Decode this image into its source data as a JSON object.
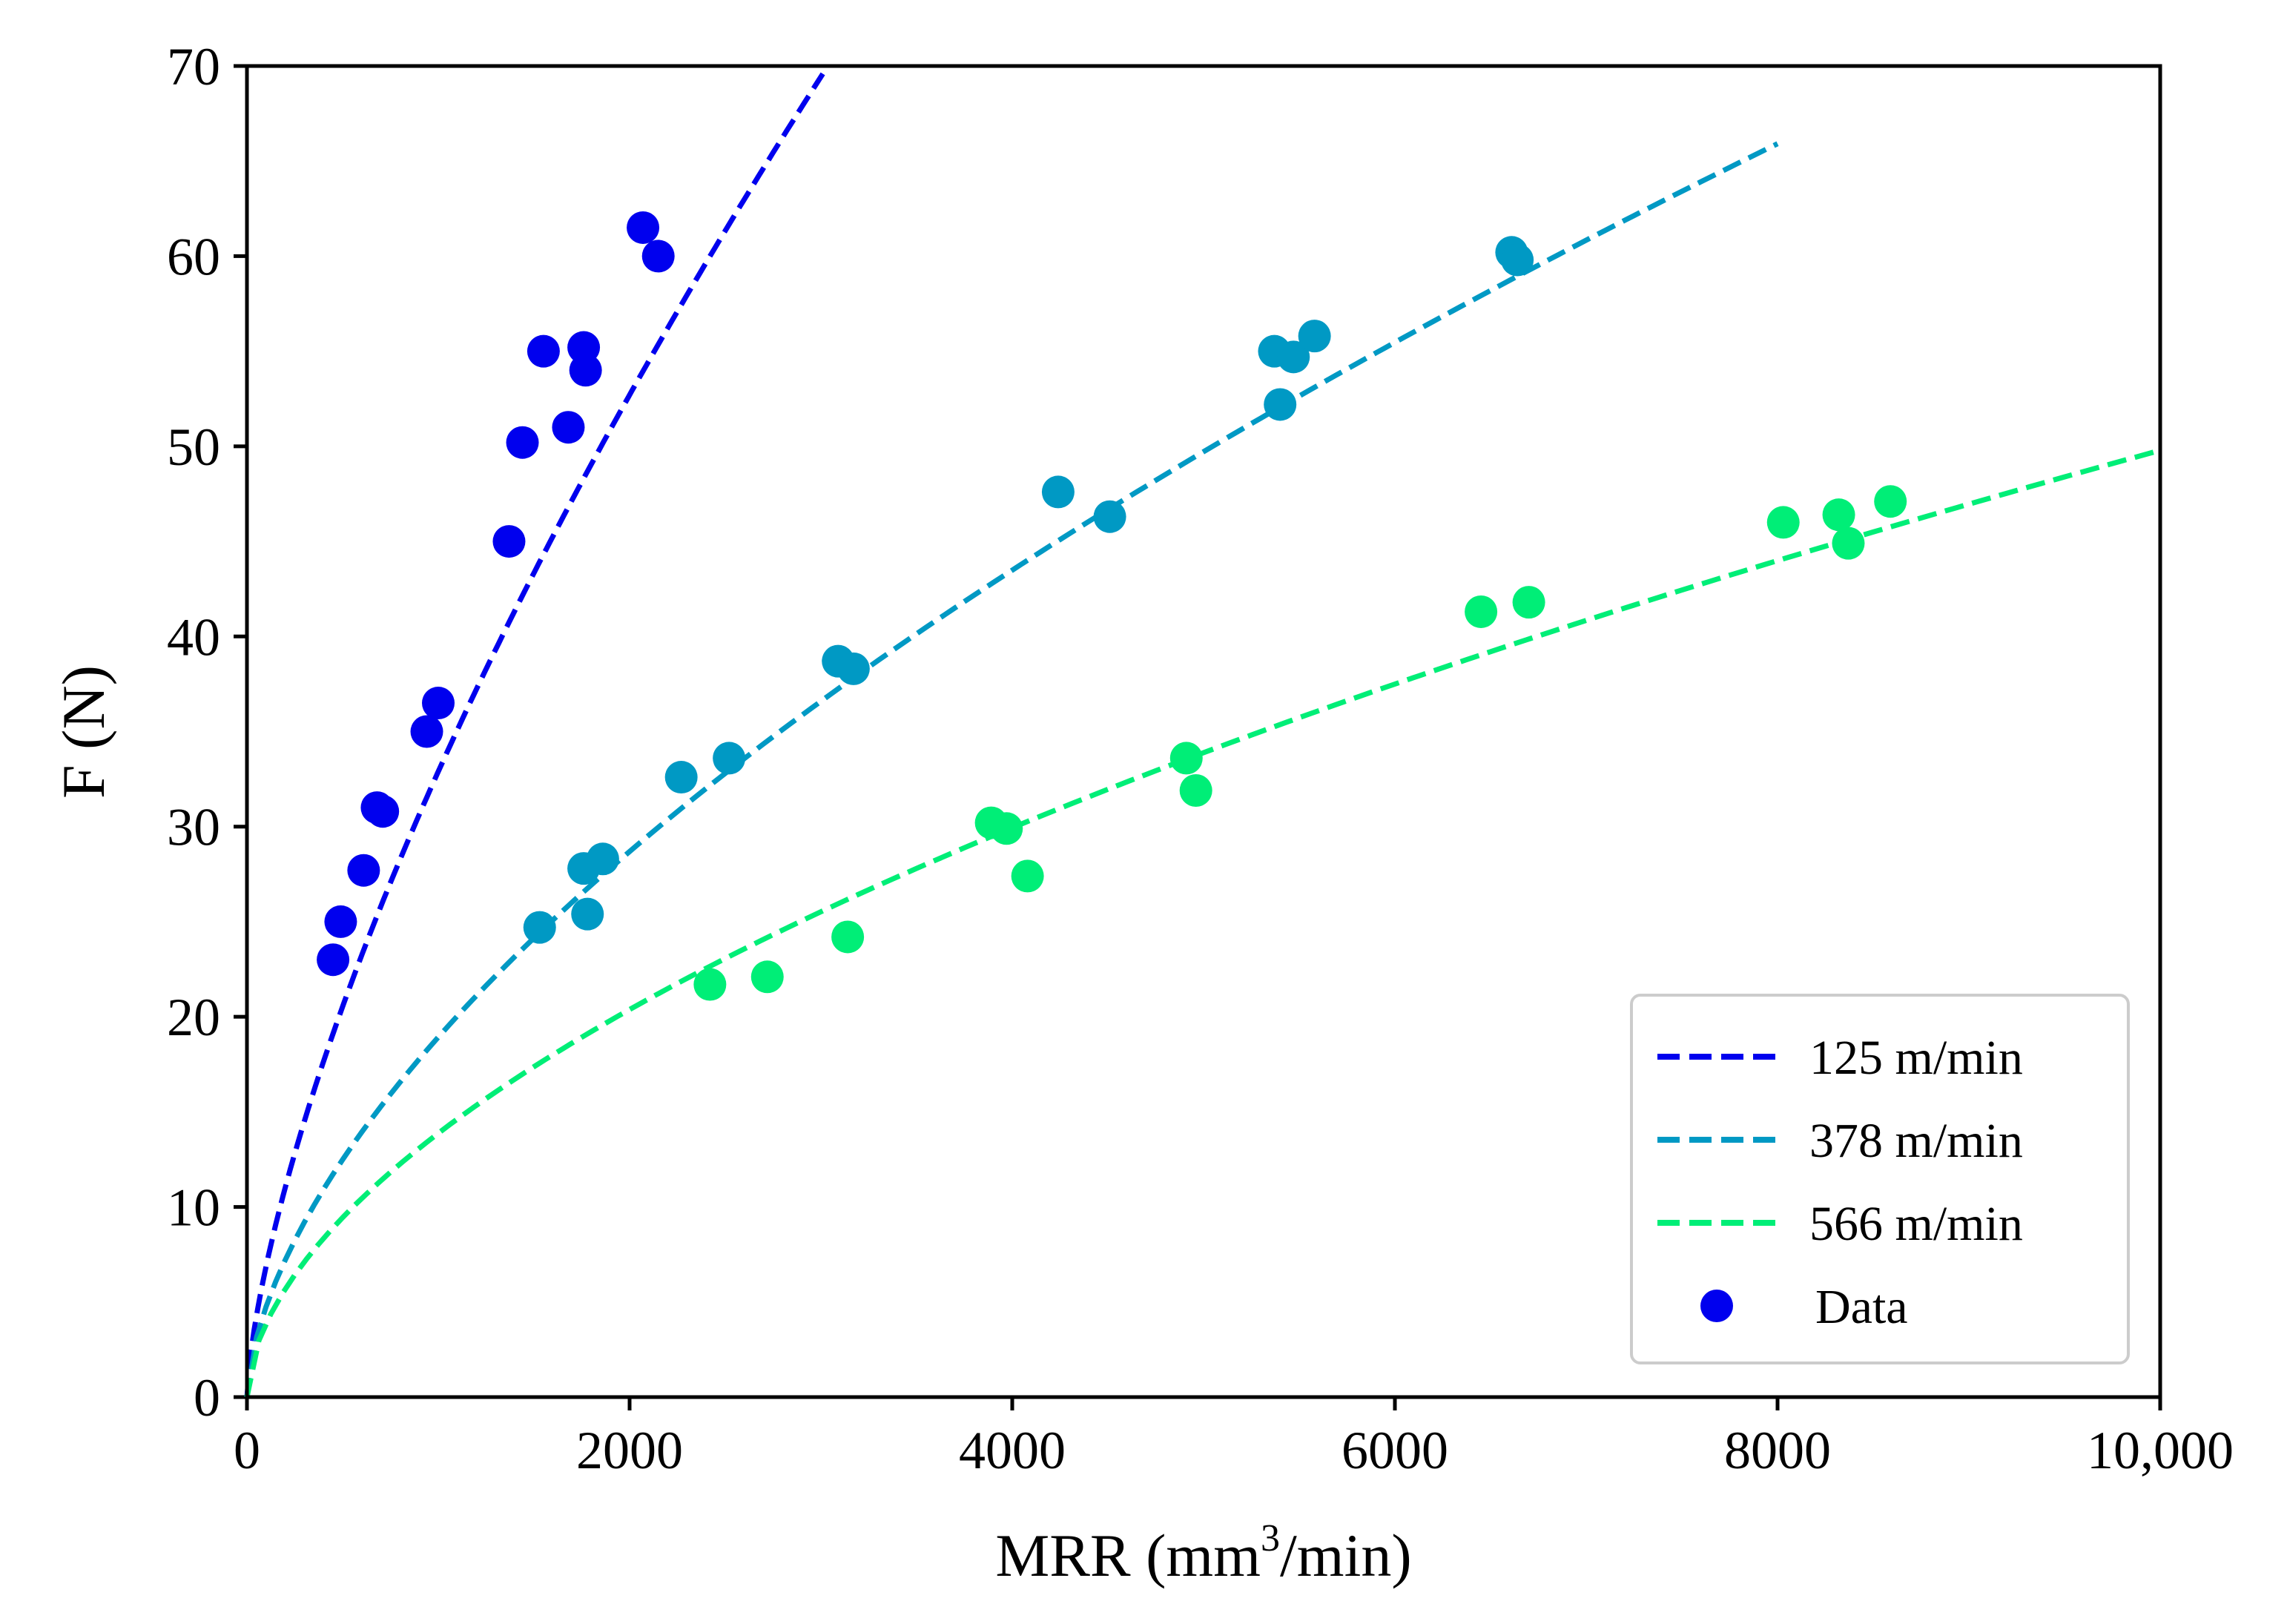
{
  "chart_data": {
    "type": "scatter",
    "xlabel_main": "MRR (mm",
    "xlabel_sup": "3",
    "xlabel_tail": "/min)",
    "ylabel": "F (N)",
    "xlim": [
      0,
      10000
    ],
    "ylim": [
      0,
      70
    ],
    "x_ticks": [
      0,
      2000,
      4000,
      6000,
      8000,
      10000
    ],
    "x_tick_labels": [
      "0",
      "2000",
      "4000",
      "6000",
      "8000",
      "10,000"
    ],
    "y_ticks": [
      0,
      10,
      20,
      30,
      40,
      50,
      60,
      70
    ],
    "y_tick_labels": [
      "0",
      "10",
      "20",
      "30",
      "40",
      "50",
      "60",
      "70"
    ],
    "grid": false,
    "legend_position": "bottom-right",
    "legend_data_label": "Data",
    "legend_data_color": "#0000ee",
    "series": [
      {
        "name": "125 m/min",
        "color": "#0000ee",
        "fit": {
          "type": "power",
          "a": 0.3,
          "b": 0.68,
          "x_end": 3010
        },
        "points": [
          [
            450,
            23.0
          ],
          [
            490,
            25.0
          ],
          [
            610,
            27.7
          ],
          [
            680,
            31.0
          ],
          [
            710,
            30.8
          ],
          [
            940,
            35.0
          ],
          [
            1000,
            36.5
          ],
          [
            1370,
            45.0
          ],
          [
            1440,
            50.2
          ],
          [
            1550,
            55.0
          ],
          [
            1680,
            51.0
          ],
          [
            1760,
            55.2
          ],
          [
            1770,
            54.0
          ],
          [
            2070,
            61.5
          ],
          [
            2150,
            60.0
          ]
        ]
      },
      {
        "name": "378 m/min",
        "color": "#0099c4",
        "fit": {
          "type": "power",
          "a": 0.3,
          "b": 0.6,
          "x_end": 8000
        },
        "points": [
          [
            1530,
            24.7
          ],
          [
            1760,
            27.8
          ],
          [
            1780,
            25.4
          ],
          [
            1860,
            28.3
          ],
          [
            2270,
            32.6
          ],
          [
            2520,
            33.6
          ],
          [
            3090,
            38.7
          ],
          [
            3170,
            38.3
          ],
          [
            4240,
            47.6
          ],
          [
            4510,
            46.3
          ],
          [
            5370,
            55.0
          ],
          [
            5400,
            52.2
          ],
          [
            5470,
            54.7
          ],
          [
            5580,
            55.8
          ],
          [
            6610,
            60.2
          ],
          [
            6640,
            59.8
          ]
        ]
      },
      {
        "name": "566 m/min",
        "color": "#00ee77",
        "fit": {
          "type": "power",
          "a": 0.3,
          "b": 0.555,
          "x_end": 10000
        },
        "points": [
          [
            2420,
            21.7
          ],
          [
            2720,
            22.1
          ],
          [
            3140,
            24.2
          ],
          [
            3890,
            30.2
          ],
          [
            3970,
            29.9
          ],
          [
            4080,
            27.4
          ],
          [
            4910,
            33.6
          ],
          [
            4960,
            31.9
          ],
          [
            6450,
            41.3
          ],
          [
            6700,
            41.8
          ],
          [
            8030,
            46.0
          ],
          [
            8320,
            46.4
          ],
          [
            8370,
            44.9
          ],
          [
            8590,
            47.1
          ]
        ]
      }
    ]
  }
}
